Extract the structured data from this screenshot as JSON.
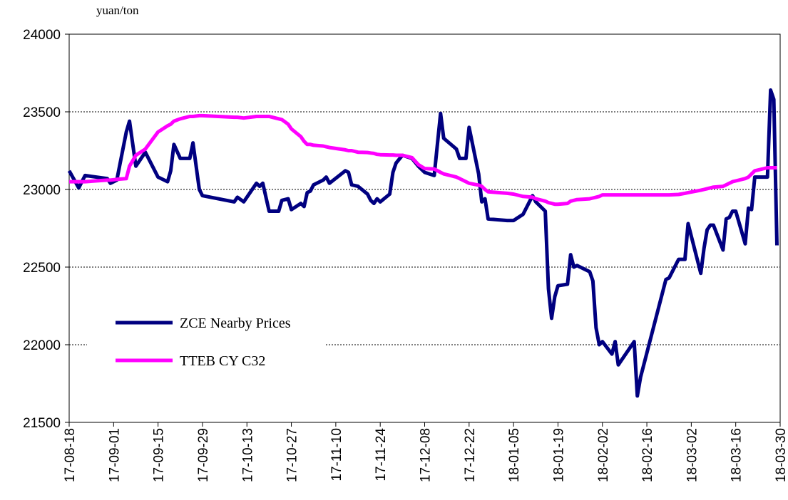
{
  "chart_data": {
    "type": "line",
    "y_label": "yuan/ton",
    "x": [
      "17-08-18",
      "17-08-21",
      "17-08-23",
      "17-08-30",
      "17-08-31",
      "17-09-02",
      "17-09-05",
      "17-09-06",
      "17-09-08",
      "17-09-11",
      "17-09-15",
      "17-09-18",
      "17-09-19",
      "17-09-20",
      "17-09-22",
      "17-09-25",
      "17-09-26",
      "17-09-28",
      "17-09-29",
      "17-10-09",
      "17-10-10",
      "17-10-12",
      "17-10-16",
      "17-10-17",
      "17-10-18",
      "17-10-20",
      "17-10-23",
      "17-10-24",
      "17-10-26",
      "17-10-27",
      "17-10-30",
      "17-10-31",
      "17-11-01",
      "17-11-02",
      "17-11-03",
      "17-11-06",
      "17-11-07",
      "17-11-08",
      "17-11-13",
      "17-11-14",
      "17-11-15",
      "17-11-17",
      "17-11-20",
      "17-11-21",
      "17-11-22",
      "17-11-23",
      "17-11-24",
      "17-11-27",
      "17-11-28",
      "17-11-29",
      "17-12-01",
      "17-12-04",
      "17-12-06",
      "17-12-08",
      "17-12-11",
      "17-12-13",
      "17-12-14",
      "17-12-18",
      "17-12-19",
      "17-12-21",
      "17-12-22",
      "17-12-25",
      "17-12-26",
      "17-12-27",
      "17-12-28",
      "18-01-03",
      "18-01-05",
      "18-01-08",
      "18-01-11",
      "18-01-12",
      "18-01-15",
      "18-01-16",
      "18-01-17",
      "18-01-18",
      "18-01-19",
      "18-01-22",
      "18-01-23",
      "18-01-24",
      "18-01-25",
      "18-01-29",
      "18-01-30",
      "18-01-31",
      "18-02-01",
      "18-02-02",
      "18-02-05",
      "18-02-06",
      "18-02-07",
      "18-02-12",
      "18-02-13",
      "18-02-14",
      "18-02-22",
      "18-02-23",
      "18-02-26",
      "18-02-28",
      "18-03-01",
      "18-03-05",
      "18-03-06",
      "18-03-07",
      "18-03-08",
      "18-03-09",
      "18-03-12",
      "18-03-13",
      "18-03-14",
      "18-03-15",
      "18-03-16",
      "18-03-19",
      "18-03-20",
      "18-03-21",
      "18-03-22",
      "18-03-26",
      "18-03-27",
      "18-03-28",
      "18-03-29"
    ],
    "series": [
      {
        "name": "ZCE Nearby Prices",
        "color": "#000080",
        "values": [
          23120,
          23010,
          23090,
          23070,
          23040,
          23060,
          23370,
          23440,
          23150,
          23240,
          23080,
          23050,
          23120,
          23290,
          23200,
          23200,
          23300,
          23000,
          22960,
          22920,
          22950,
          22920,
          23040,
          23020,
          23040,
          22860,
          22860,
          22930,
          22940,
          22870,
          22910,
          22890,
          22980,
          22990,
          23030,
          23060,
          23080,
          23040,
          23120,
          23110,
          23030,
          23020,
          22970,
          22930,
          22910,
          22940,
          22920,
          22970,
          23110,
          23170,
          23220,
          23200,
          23150,
          23110,
          23090,
          23490,
          23330,
          23260,
          23200,
          23200,
          23400,
          23100,
          22920,
          22940,
          22810,
          22800,
          22800,
          22840,
          22960,
          22920,
          22860,
          22360,
          22170,
          22310,
          22380,
          22390,
          22580,
          22500,
          22510,
          22470,
          22410,
          22110,
          22000,
          22020,
          21940,
          22020,
          21870,
          22020,
          21670,
          21790,
          22420,
          22430,
          22550,
          22550,
          22780,
          22460,
          22620,
          22740,
          22770,
          22770,
          22610,
          22810,
          22820,
          22860,
          22860,
          22650,
          22880,
          22870,
          23080,
          23080,
          23640,
          23580,
          22640
        ]
      },
      {
        "name": "TTEB CY C32",
        "color": "#ff00ff",
        "values": [
          23050,
          23050,
          23050,
          23060,
          23060,
          23065,
          23070,
          23150,
          23220,
          23260,
          23370,
          23410,
          23420,
          23440,
          23455,
          23470,
          23470,
          23475,
          23475,
          23465,
          23465,
          23460,
          23470,
          23470,
          23470,
          23470,
          23455,
          23450,
          23420,
          23390,
          23340,
          23310,
          23290,
          23290,
          23285,
          23280,
          23275,
          23270,
          23255,
          23250,
          23250,
          23240,
          23238,
          23235,
          23232,
          23226,
          23224,
          23222,
          23222,
          23220,
          23220,
          23205,
          23160,
          23135,
          23132,
          23110,
          23100,
          23080,
          23070,
          23050,
          23040,
          23028,
          23020,
          23000,
          22985,
          22975,
          22970,
          22955,
          22950,
          22940,
          22925,
          22915,
          22910,
          22905,
          22905,
          22910,
          22925,
          22930,
          22935,
          22940,
          22945,
          22950,
          22955,
          22965,
          22965,
          22965,
          22965,
          22965,
          22965,
          22965,
          22965,
          22965,
          22968,
          22975,
          22980,
          22995,
          23000,
          23005,
          23010,
          23015,
          23020,
          23030,
          23040,
          23050,
          23055,
          23070,
          23080,
          23100,
          23120,
          23140,
          23140,
          23140,
          23140
        ]
      }
    ],
    "xlim": [
      "17-08-18",
      "18-03-30"
    ],
    "xticks": [
      "17-08-18",
      "17-09-01",
      "17-09-15",
      "17-09-29",
      "17-10-13",
      "17-10-27",
      "17-11-10",
      "17-11-24",
      "17-12-08",
      "17-12-22",
      "18-01-05",
      "18-01-19",
      "18-02-02",
      "18-02-16",
      "18-03-02",
      "18-03-16",
      "18-03-30"
    ],
    "ylim": [
      21500,
      24000
    ],
    "yticks": [
      21500,
      22000,
      22500,
      23000,
      23500,
      24000
    ],
    "grid": true,
    "legend": "lower left"
  }
}
